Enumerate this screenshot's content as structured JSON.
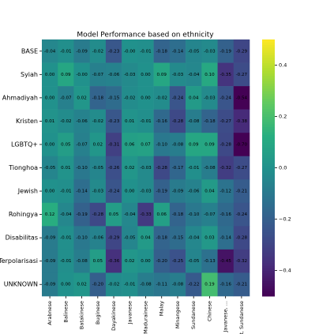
{
  "chart_data": {
    "type": "heatmap",
    "title": "Model Performance based on ethnicity",
    "rows": [
      "BASE",
      "Syiah",
      "Ahmadiyah",
      "Kristen",
      "LGBTQ+",
      "Tionghoa",
      "Jewish",
      "Rohingya",
      "Disabilitas",
      "Terpolarisasi",
      "UNKNOWN"
    ],
    "columns": [
      "Arabnese",
      "Balinese",
      "Batakinese",
      "Buginese",
      "Dayakinese",
      "Javanese",
      "Madurainese",
      "Malay",
      "Minangese",
      "Sundanese",
      "Chinese",
      "r, Javanese, ...",
      "at, Sundanese"
    ],
    "values": [
      [
        -0.04,
        -0.01,
        -0.09,
        -0.02,
        -0.23,
        -0.0,
        -0.01,
        -0.18,
        -0.14,
        -0.05,
        -0.03,
        -0.19,
        -0.29
      ],
      [
        0.0,
        0.09,
        -0.0,
        -0.07,
        -0.06,
        -0.03,
        0.0,
        0.09,
        -0.03,
        -0.04,
        0.1,
        -0.35,
        -0.27
      ],
      [
        0.0,
        -0.07,
        0.02,
        -0.18,
        -0.15,
        -0.02,
        0.0,
        -0.02,
        -0.24,
        0.04,
        -0.03,
        -0.24,
        -0.54
      ],
      [
        0.01,
        -0.02,
        -0.06,
        -0.02,
        -0.23,
        0.01,
        -0.01,
        -0.16,
        -0.28,
        -0.08,
        -0.18,
        -0.27,
        -0.38
      ],
      [
        0.0,
        0.05,
        -0.07,
        0.02,
        -0.31,
        0.06,
        0.07,
        -0.1,
        -0.08,
        0.09,
        0.09,
        -0.28,
        -0.7
      ],
      [
        -0.05,
        0.01,
        -0.1,
        -0.05,
        -0.26,
        0.02,
        -0.03,
        -0.28,
        -0.17,
        -0.01,
        -0.08,
        -0.32,
        -0.27
      ],
      [
        0.0,
        -0.01,
        -0.14,
        -0.03,
        -0.24,
        0.0,
        -0.03,
        -0.19,
        -0.09,
        -0.06,
        0.04,
        -0.12,
        -0.21
      ],
      [
        0.12,
        -0.04,
        -0.19,
        -0.28,
        0.05,
        -0.04,
        -0.33,
        0.06,
        -0.18,
        -0.1,
        -0.07,
        -0.16,
        -0.24
      ],
      [
        -0.09,
        -0.01,
        -0.1,
        -0.06,
        -0.29,
        -0.05,
        0.04,
        -0.18,
        -0.15,
        -0.04,
        0.03,
        -0.14,
        -0.28
      ],
      [
        -0.09,
        -0.01,
        -0.08,
        0.05,
        -0.36,
        0.02,
        0.0,
        -0.2,
        -0.25,
        -0.05,
        -0.13,
        -0.45,
        -0.32
      ],
      [
        -0.09,
        0.0,
        0.02,
        -0.2,
        -0.02,
        -0.01,
        -0.08,
        -0.11,
        -0.08,
        -0.22,
        0.19,
        -0.16,
        -0.21
      ]
    ],
    "value_labels": [
      [
        "-0.04",
        "-0.01",
        "-0.09",
        "-0.02",
        "-0.23",
        "-0.00",
        "-0.01",
        "-0.18",
        "-0.14",
        "-0.05",
        "-0.03",
        "-0.19",
        "-0.29"
      ],
      [
        "0.00",
        "0.09",
        "-0.00",
        "-0.07",
        "-0.06",
        "-0.03",
        "0.00",
        "0.09",
        "-0.03",
        "-0.04",
        "0.10",
        "-0.35",
        "-0.27"
      ],
      [
        "0.00",
        "-0.07",
        "0.02",
        "-0.18",
        "-0.15",
        "-0.02",
        "0.00",
        "-0.02",
        "-0.24",
        "0.04",
        "-0.03",
        "-0.24",
        "-0.54"
      ],
      [
        "0.01",
        "-0.02",
        "-0.06",
        "-0.02",
        "-0.23",
        "0.01",
        "-0.01",
        "-0.16",
        "-0.28",
        "-0.08",
        "-0.18",
        "-0.27",
        "-0.38"
      ],
      [
        "0.00",
        "0.05",
        "-0.07",
        "0.02",
        "-0.31",
        "0.06",
        "0.07",
        "-0.10",
        "-0.08",
        "0.09",
        "0.09",
        "-0.28",
        "-0.70"
      ],
      [
        "-0.05",
        "0.01",
        "-0.10",
        "-0.05",
        "-0.26",
        "0.02",
        "-0.03",
        "-0.28",
        "-0.17",
        "-0.01",
        "-0.08",
        "-0.32",
        "-0.27"
      ],
      [
        "0.00",
        "-0.01",
        "-0.14",
        "-0.03",
        "-0.24",
        "0.00",
        "-0.03",
        "-0.19",
        "-0.09",
        "-0.06",
        "0.04",
        "-0.12",
        "-0.21"
      ],
      [
        "0.12",
        "-0.04",
        "-0.19",
        "-0.28",
        "0.05",
        "-0.04",
        "-0.33",
        "0.06",
        "-0.18",
        "-0.10",
        "-0.07",
        "-0.16",
        "-0.24"
      ],
      [
        "-0.09",
        "-0.01",
        "-0.10",
        "-0.06",
        "-0.29",
        "-0.05",
        "0.04",
        "-0.18",
        "-0.15",
        "-0.04",
        "0.03",
        "-0.14",
        "-0.28"
      ],
      [
        "-0.09",
        "-0.01",
        "-0.08",
        "0.05",
        "-0.36",
        "0.02",
        "0.00",
        "-0.20",
        "-0.25",
        "-0.05",
        "-0.13",
        "-0.45",
        "-0.32"
      ],
      [
        "-0.09",
        "0.00",
        "0.02",
        "-0.20",
        "-0.02",
        "-0.01",
        "-0.08",
        "-0.11",
        "-0.08",
        "-0.22",
        "0.19",
        "-0.16",
        "-0.21"
      ]
    ],
    "colormap": "viridis",
    "colorbar_lim": [
      -0.5,
      0.5
    ],
    "colorbar_ticks": [
      {
        "value": -0.4,
        "label": "−0.4"
      },
      {
        "value": -0.2,
        "label": "−0.2"
      },
      {
        "value": 0,
        "label": "0.0"
      },
      0.2,
      0.4
    ]
  }
}
